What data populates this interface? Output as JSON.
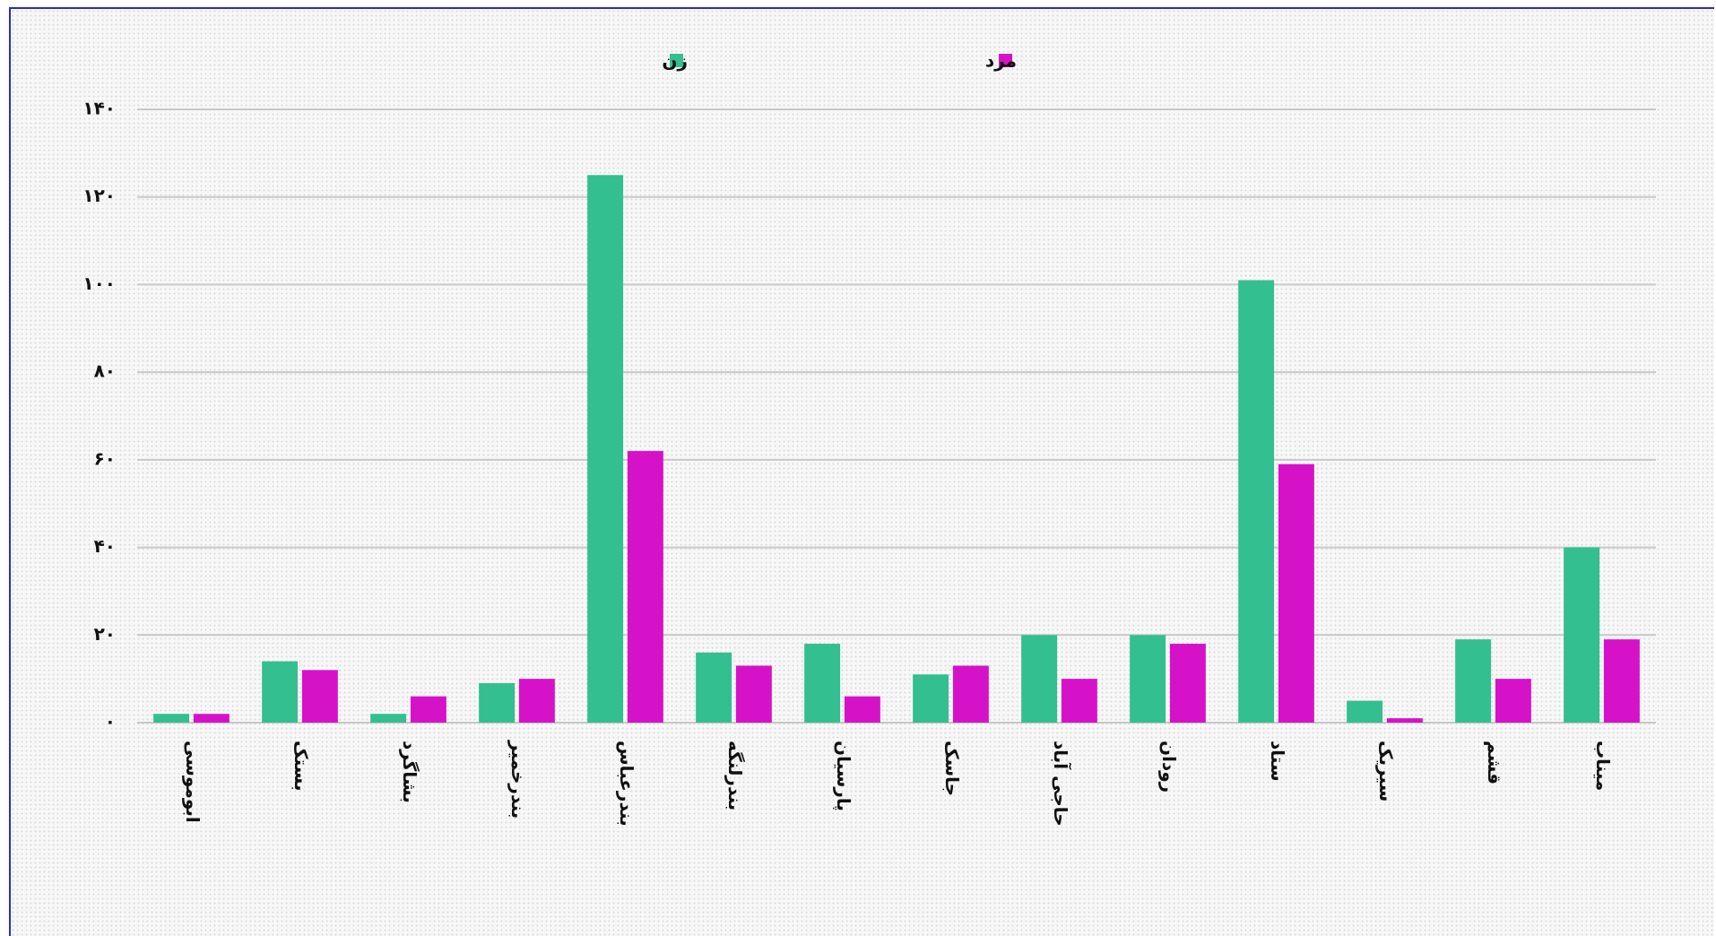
{
  "chart_data": {
    "type": "bar",
    "categories": [
      "ابوموسی",
      "بستک",
      "بشاگرد",
      "بندرخمیر",
      "بندرعباس",
      "بندرلنگه",
      "پارسیان",
      "جاسک",
      "حاجی آباد",
      "رودان",
      "ستاد",
      "سیریک",
      "قشم",
      "میناب"
    ],
    "series": [
      {
        "name": "زن",
        "color": "#33bf8f",
        "values": [
          2,
          14,
          2,
          9,
          125,
          16,
          18,
          11,
          20,
          20,
          101,
          5,
          19,
          40
        ]
      },
      {
        "name": "مرد",
        "color": "#d612c8",
        "values": [
          2,
          12,
          6,
          10,
          62,
          13,
          6,
          13,
          10,
          18,
          59,
          1,
          10,
          19
        ]
      }
    ],
    "ylim": [
      0,
      140
    ],
    "yticks": [
      {
        "value": 0,
        "label": "۰"
      },
      {
        "value": 20,
        "label": "۲۰"
      },
      {
        "value": 40,
        "label": "۴۰"
      },
      {
        "value": 60,
        "label": "۶۰"
      },
      {
        "value": 80,
        "label": "۸۰"
      },
      {
        "value": 100,
        "label": "۱۰۰"
      },
      {
        "value": 120,
        "label": "۱۲۰"
      },
      {
        "value": 140,
        "label": "۱۴۰"
      }
    ],
    "grid": true,
    "legend": "top"
  }
}
